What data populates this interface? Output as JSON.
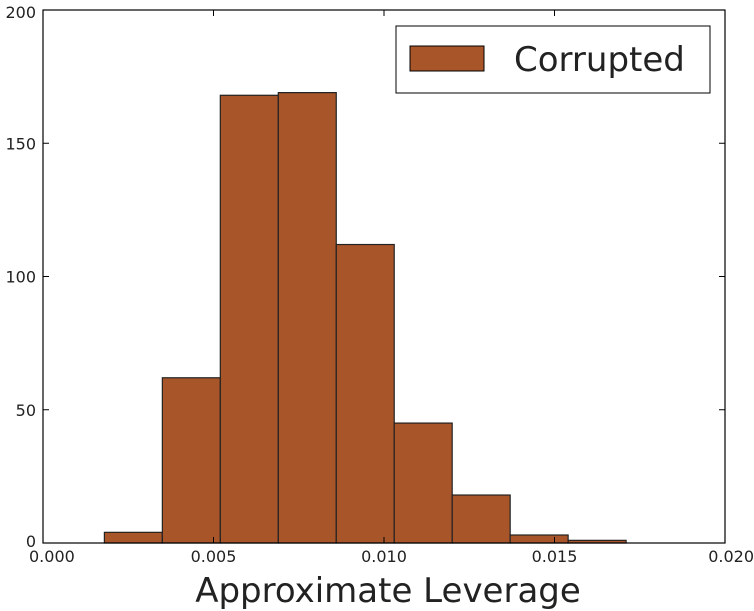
{
  "chart_data": {
    "type": "bar",
    "subtype": "histogram",
    "title": "",
    "xlabel": "Approximate Leverage",
    "ylabel": "",
    "xlim": [
      0.0,
      0.02
    ],
    "ylim": [
      0,
      200
    ],
    "x_ticks": [
      "0.000",
      "0.005",
      "0.010",
      "0.015",
      "0.020"
    ],
    "x_tick_values": [
      0.0,
      0.005,
      0.01,
      0.015,
      0.02
    ],
    "y_ticks": [
      "0",
      "50",
      "100",
      "150",
      "200"
    ],
    "y_tick_values": [
      0,
      50,
      100,
      150,
      200
    ],
    "grid": false,
    "legend": {
      "position": "top-right",
      "entries": [
        "Corrupted"
      ]
    },
    "series": [
      {
        "name": "Corrupted",
        "color": "#a8552a",
        "bins": [
          {
            "x0": 0.0018,
            "x1": 0.0035,
            "value": 4
          },
          {
            "x0": 0.0035,
            "x1": 0.0052,
            "value": 62
          },
          {
            "x0": 0.0052,
            "x1": 0.0069,
            "value": 168
          },
          {
            "x0": 0.0069,
            "x1": 0.0086,
            "value": 169
          },
          {
            "x0": 0.0086,
            "x1": 0.0103,
            "value": 112
          },
          {
            "x0": 0.0103,
            "x1": 0.012,
            "value": 45
          },
          {
            "x0": 0.012,
            "x1": 0.0137,
            "value": 18
          },
          {
            "x0": 0.0137,
            "x1": 0.0154,
            "value": 3
          },
          {
            "x0": 0.0154,
            "x1": 0.0171,
            "value": 1
          },
          {
            "x0": 0.0171,
            "x1": 0.0188,
            "value": 0
          }
        ]
      }
    ]
  }
}
